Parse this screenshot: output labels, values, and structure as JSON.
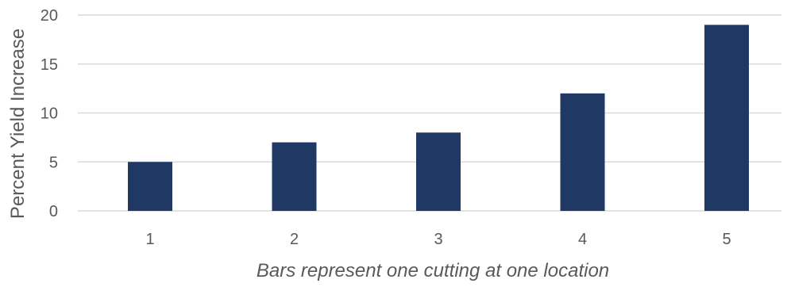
{
  "chart_data": {
    "type": "bar",
    "categories": [
      "1",
      "2",
      "3",
      "4",
      "5"
    ],
    "values": [
      5,
      7,
      8,
      12,
      19
    ],
    "title": "",
    "xlabel": "Bars represent one cutting at one location",
    "ylabel": "Percent Yield Increase",
    "ylim": [
      0,
      20
    ],
    "yticks": [
      "0",
      "5",
      "10",
      "15",
      "20"
    ],
    "grid": true,
    "legend": "none",
    "bar_color": "#203864"
  }
}
